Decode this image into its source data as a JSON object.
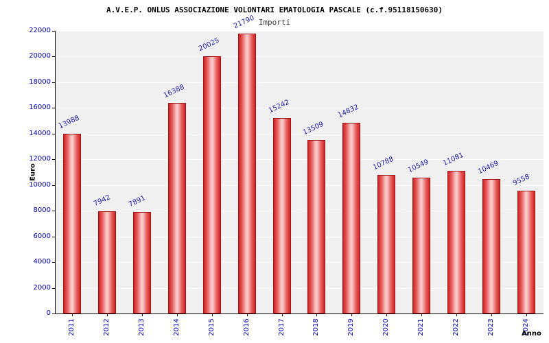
{
  "chart_data": {
    "type": "bar",
    "title": "A.V.E.P. ONLUS ASSOCIAZIONE VOLONTARI EMATOLOGIA PASCALE (c.f.95118150630)",
    "subtitle": "Importi",
    "xlabel": "Anno",
    "ylabel": "Euro",
    "categories": [
      "2011",
      "2012",
      "2013",
      "2014",
      "2015",
      "2016",
      "2017",
      "2018",
      "2019",
      "2020",
      "2021",
      "2022",
      "2023",
      "2024"
    ],
    "values": [
      13988,
      7942,
      7891,
      16388,
      20025,
      21790,
      15242,
      13509,
      14832,
      10788,
      10549,
      11081,
      10469,
      9558
    ],
    "ylim": [
      0,
      22000
    ],
    "ytick_step": 2000,
    "grid": true,
    "legend_position": "none",
    "colors": {
      "bar_edge": "#a01414",
      "bar_side": "#cc2222",
      "bar_mid": "#e86060",
      "bar_highlight": "#f8c8c8",
      "value_label": "#2020a8",
      "tick_label": "#0000bb",
      "plot_background": "#f0f0f0",
      "grid_line": "#ffffff",
      "axis_line": "#000000",
      "title": "#000000",
      "subtitle": "#3a3a3a"
    }
  }
}
